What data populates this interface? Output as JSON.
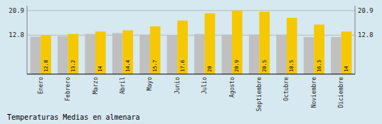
{
  "chart_data": {
    "type": "bar",
    "title": "Temperaturas Medias en almenara",
    "categories": [
      "Enero",
      "Febrero",
      "Marzo",
      "Abril",
      "Mayo",
      "Junio",
      "Julio",
      "Agosto",
      "Septiembre",
      "Octubre",
      "Noviembre",
      "Diciembre"
    ],
    "series": [
      {
        "color": "#C0C0C0",
        "values": [
          12.3,
          12.5,
          13.2,
          13.5,
          13.0,
          12.8,
          13.2,
          13.0,
          13.0,
          13.0,
          12.2,
          12.2
        ]
      },
      {
        "color": "#F5C800",
        "data_labels": true,
        "values": [
          12.8,
          13.2,
          14.0,
          14.4,
          15.7,
          17.6,
          20.0,
          20.9,
          20.5,
          18.5,
          16.3,
          14.0
        ]
      }
    ],
    "ylim": [
      0,
      22.5
    ],
    "yticks": [
      12.8,
      20.9
    ],
    "y2lim": [
      0,
      22.5
    ],
    "y2ticks": [
      12.8,
      20.9
    ],
    "grid": true
  }
}
